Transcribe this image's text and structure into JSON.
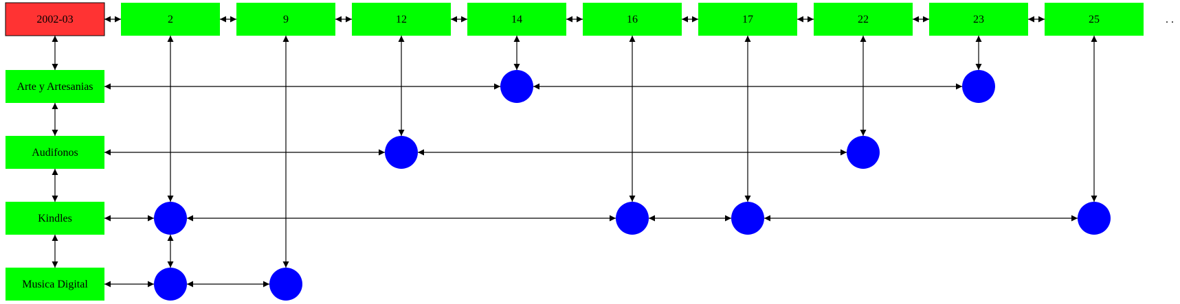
{
  "root": {
    "label": "2002-03",
    "fill": "#ff3333"
  },
  "columns": [
    "2",
    "9",
    "12",
    "14",
    "16",
    "17",
    "22",
    "23",
    "25"
  ],
  "rows": [
    "Arte y Artesanias",
    "Audifonos",
    "Kindles",
    "Musica Digital"
  ],
  "ellipsis": ". .",
  "cells": [
    {
      "row": "Arte y Artesanias",
      "col": "14"
    },
    {
      "row": "Arte y Artesanias",
      "col": "23"
    },
    {
      "row": "Audifonos",
      "col": "12"
    },
    {
      "row": "Audifonos",
      "col": "22"
    },
    {
      "row": "Kindles",
      "col": "2"
    },
    {
      "row": "Kindles",
      "col": "16"
    },
    {
      "row": "Kindles",
      "col": "17"
    },
    {
      "row": "Kindles",
      "col": "25"
    },
    {
      "row": "Musica Digital",
      "col": "2"
    },
    {
      "row": "Musica Digital",
      "col": "9"
    }
  ],
  "colors": {
    "header": "#00ff00",
    "row_label": "#00ff00",
    "node": "#0000ff",
    "edge": "#000000"
  }
}
